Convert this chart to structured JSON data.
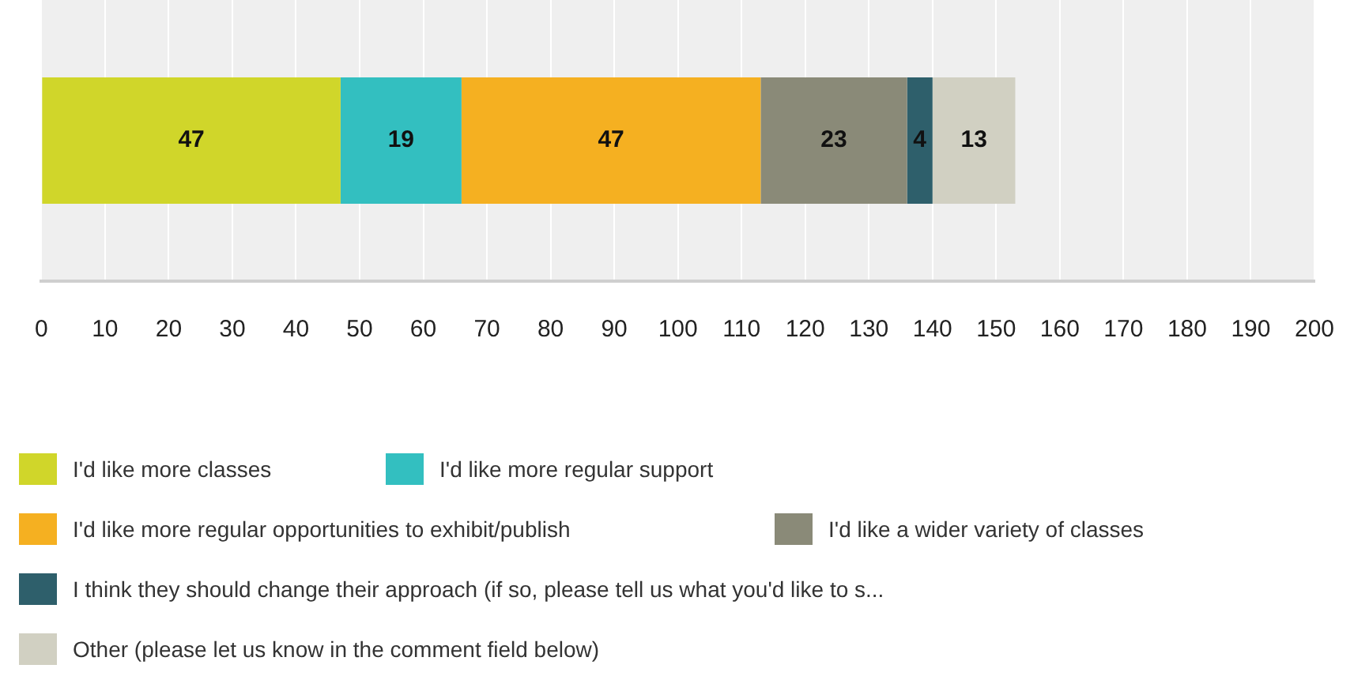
{
  "chart_data": {
    "type": "bar",
    "orientation": "horizontal",
    "stacked": true,
    "categories": [
      null
    ],
    "series": [
      {
        "name": "I'd like more classes",
        "color": "#d0d62a",
        "values": [
          47
        ]
      },
      {
        "name": "I'd like more regular support",
        "color": "#33bfc0",
        "values": [
          19
        ]
      },
      {
        "name": "I'd like more regular opportunities to exhibit/publish",
        "color": "#f5b021",
        "values": [
          47
        ]
      },
      {
        "name": "I'd like a wider variety of classes",
        "color": "#8a8a78",
        "values": [
          23
        ]
      },
      {
        "name": "I think they should change their approach (if so, please tell us what you'd like to s...",
        "color": "#2e5f6b",
        "values": [
          4
        ]
      },
      {
        "name": "Other (please let us know in the comment field below)",
        "color": "#d1d0c2",
        "values": [
          13
        ]
      }
    ],
    "xlim": [
      0,
      200
    ],
    "xticks": [
      0,
      10,
      20,
      30,
      40,
      50,
      60,
      70,
      80,
      90,
      100,
      110,
      120,
      130,
      140,
      150,
      160,
      170,
      180,
      190,
      200
    ],
    "grid": "x",
    "data_labels": true,
    "legend": "bottom"
  }
}
